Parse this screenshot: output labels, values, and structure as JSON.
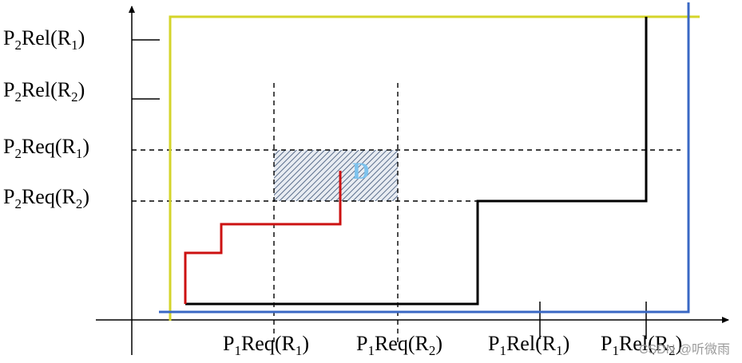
{
  "diagram": {
    "y_labels": [
      {
        "p": "P",
        "ps": "2",
        "mid": "Rel(R",
        "rs": "1",
        "end": ")"
      },
      {
        "p": "P",
        "ps": "2",
        "mid": "Rel(R",
        "rs": "2",
        "end": ")"
      },
      {
        "p": "P",
        "ps": "2",
        "mid": "Req(R",
        "rs": "1",
        "end": ")"
      },
      {
        "p": "P",
        "ps": "2",
        "mid": "Req(R",
        "rs": "2",
        "end": ")"
      }
    ],
    "x_labels": [
      {
        "p": "P",
        "ps": "1",
        "mid": "Req(R",
        "rs": "1",
        "end": ")"
      },
      {
        "p": "P",
        "ps": "1",
        "mid": "Req(R",
        "rs": "2",
        "end": ")"
      },
      {
        "p": "P",
        "ps": "1",
        "mid": "Rel(R",
        "rs": "1",
        "end": ")"
      },
      {
        "p": "P",
        "ps": "1",
        "mid": "Rel(R",
        "rs": "2",
        "end": ")"
      }
    ],
    "region_label": "D",
    "colors": {
      "yellow_boundary": "#d4d42a",
      "blue_boundary": "#3a68c4",
      "red_path": "#cc1111",
      "black_path": "#000000",
      "hatch": "#5a6e8c"
    }
  },
  "watermark": "CSDN @听微雨"
}
